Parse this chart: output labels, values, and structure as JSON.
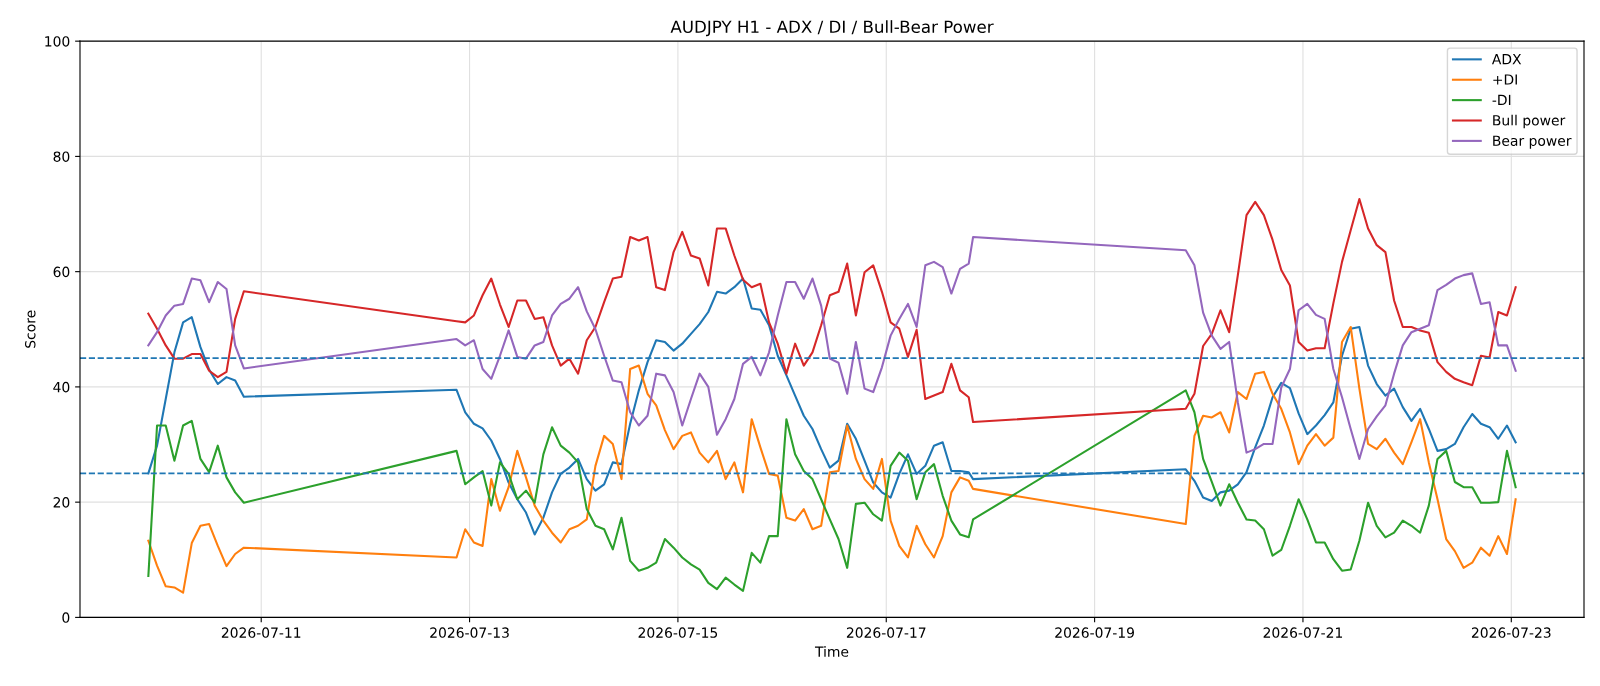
{
  "chart_data": {
    "type": "line",
    "title": "AUDJPY H1 - ADX / DI / Bull-Bear Power",
    "xlabel": "Time",
    "ylabel": "Score",
    "x": [
      "2026-07-09T22:00",
      "2026-07-10T00:00",
      "2026-07-10T02:00",
      "2026-07-10T04:00",
      "2026-07-10T06:00",
      "2026-07-10T08:00",
      "2026-07-10T10:00",
      "2026-07-10T12:00",
      "2026-07-10T14:00",
      "2026-07-10T16:00",
      "2026-07-10T18:00",
      "2026-07-10T20:00",
      "2026-07-12T21:00",
      "2026-07-12T23:00",
      "2026-07-13T01:00",
      "2026-07-13T03:00",
      "2026-07-13T05:00",
      "2026-07-13T07:00",
      "2026-07-13T09:00",
      "2026-07-13T11:00",
      "2026-07-13T13:00",
      "2026-07-13T15:00",
      "2026-07-13T17:00",
      "2026-07-13T19:00",
      "2026-07-13T21:00",
      "2026-07-13T23:00",
      "2026-07-14T01:00",
      "2026-07-14T03:00",
      "2026-07-14T05:00",
      "2026-07-14T07:00",
      "2026-07-14T09:00",
      "2026-07-14T11:00",
      "2026-07-14T13:00",
      "2026-07-14T15:00",
      "2026-07-14T17:00",
      "2026-07-14T19:00",
      "2026-07-14T21:00",
      "2026-07-14T23:00",
      "2026-07-15T01:00",
      "2026-07-15T03:00",
      "2026-07-15T05:00",
      "2026-07-15T07:00",
      "2026-07-15T09:00",
      "2026-07-15T11:00",
      "2026-07-15T13:00",
      "2026-07-15T15:00",
      "2026-07-15T17:00",
      "2026-07-15T19:00",
      "2026-07-15T21:00",
      "2026-07-15T23:00",
      "2026-07-16T01:00",
      "2026-07-16T03:00",
      "2026-07-16T05:00",
      "2026-07-16T07:00",
      "2026-07-16T09:00",
      "2026-07-16T11:00",
      "2026-07-16T13:00",
      "2026-07-16T15:00",
      "2026-07-16T17:00",
      "2026-07-16T19:00",
      "2026-07-16T21:00",
      "2026-07-16T23:00",
      "2026-07-17T01:00",
      "2026-07-17T03:00",
      "2026-07-17T05:00",
      "2026-07-17T07:00",
      "2026-07-17T09:00",
      "2026-07-17T11:00",
      "2026-07-17T13:00",
      "2026-07-17T15:00",
      "2026-07-17T17:00",
      "2026-07-17T19:00",
      "2026-07-17T20:00",
      "2026-07-19T21:00",
      "2026-07-19T23:00",
      "2026-07-20T01:00",
      "2026-07-20T03:00",
      "2026-07-20T05:00",
      "2026-07-20T07:00",
      "2026-07-20T09:00",
      "2026-07-20T11:00",
      "2026-07-20T13:00",
      "2026-07-20T15:00",
      "2026-07-20T17:00",
      "2026-07-20T19:00",
      "2026-07-20T21:00",
      "2026-07-20T23:00",
      "2026-07-21T01:00",
      "2026-07-21T03:00",
      "2026-07-21T05:00",
      "2026-07-21T07:00",
      "2026-07-21T09:00",
      "2026-07-21T11:00",
      "2026-07-21T13:00",
      "2026-07-21T15:00",
      "2026-07-21T17:00",
      "2026-07-21T19:00",
      "2026-07-21T21:00",
      "2026-07-21T23:00",
      "2026-07-22T01:00",
      "2026-07-22T03:00",
      "2026-07-22T05:00",
      "2026-07-22T07:00",
      "2026-07-22T09:00",
      "2026-07-22T11:00",
      "2026-07-22T13:00",
      "2026-07-22T15:00",
      "2026-07-22T17:00",
      "2026-07-22T19:00",
      "2026-07-22T21:00",
      "2026-07-22T23:00",
      "2026-07-23T01:00"
    ],
    "series": [
      {
        "name": "ADX",
        "color": "#1f77b4",
        "values": [
          25,
          29.8,
          37.9,
          46,
          51.2,
          52.1,
          46.9,
          43,
          40.5,
          41.7,
          41.1,
          38.3,
          39.5,
          35.6,
          33.6,
          32.8,
          30.7,
          27.5,
          23.4,
          20.5,
          18.2,
          14.4,
          17.3,
          21.7,
          24.9,
          26,
          27.5,
          24,
          22,
          23.1,
          26.9,
          26.6,
          33.6,
          39.4,
          44.3,
          48.1,
          47.8,
          46.3,
          47.5,
          49.2,
          50.9,
          53,
          56.5,
          56.2,
          57.3,
          58.8,
          53.6,
          53.4,
          50.7,
          45.4,
          42,
          38.5,
          35,
          32.7,
          29.2,
          26,
          27.2,
          33.6,
          31,
          27.2,
          23.4,
          21.7,
          20.8,
          24.9,
          28.3,
          24.9,
          26.3,
          29.8,
          30.4,
          25.4,
          25.4,
          25.2,
          24,
          25.7,
          23.7,
          20.8,
          20.2,
          21.7,
          22,
          23.1,
          25.2,
          29.5,
          33.3,
          38.2,
          40.7,
          39.8,
          35.4,
          31.8,
          33.3,
          35.1,
          37.3,
          45.4,
          50.1,
          50.4,
          43.7,
          40.5,
          38.5,
          39.7,
          36.5,
          34.1,
          36.2,
          32.7,
          28.9,
          29.2,
          30.1,
          33,
          35.3,
          33.6,
          33,
          31,
          33.3,
          30.4
        ]
      },
      {
        "name": "+DI",
        "color": "#ff7f0e",
        "values": [
          13.3,
          9,
          5.4,
          5.2,
          4.3,
          12.9,
          15.9,
          16.2,
          12.4,
          8.9,
          11,
          12.1,
          10.4,
          15.3,
          13,
          12.4,
          24,
          18.5,
          22.6,
          28.9,
          24.3,
          19.4,
          16.8,
          14.7,
          13,
          15.3,
          15.9,
          17,
          26.3,
          31.5,
          30.1,
          24,
          43.1,
          43.7,
          38.8,
          36.8,
          32.5,
          29.2,
          31.5,
          32.1,
          28.6,
          26.9,
          28.9,
          24,
          26.9,
          21.7,
          34.4,
          29.5,
          24.9,
          24.6,
          17.3,
          16.8,
          18.8,
          15.3,
          15.9,
          25.2,
          25.4,
          33.3,
          27.5,
          24,
          22.3,
          27.5,
          16.8,
          12.4,
          10.4,
          15.9,
          12.7,
          10.4,
          14.1,
          21.7,
          24.3,
          23.7,
          22.3,
          16.2,
          31.5,
          35,
          34.7,
          35.6,
          32.1,
          39.1,
          37.9,
          42.3,
          42.6,
          38.8,
          36.2,
          32.1,
          26.6,
          29.8,
          31.8,
          29.8,
          31.2,
          47.8,
          50.4,
          39.7,
          30.1,
          29.2,
          31,
          28.6,
          26.6,
          30.4,
          34.4,
          26.9,
          20.5,
          13.6,
          11.5,
          8.6,
          9.5,
          12.1,
          10.7,
          14.1,
          11,
          20.5
        ]
      },
      {
        "name": "-DI",
        "color": "#2ca02c",
        "values": [
          7.2,
          33.3,
          33.3,
          27.2,
          33.3,
          34.1,
          27.5,
          25.2,
          29.8,
          24.3,
          21.7,
          19.9,
          28.9,
          23.1,
          24.3,
          25.4,
          19.4,
          26.9,
          24.9,
          20.5,
          22,
          19.9,
          28.3,
          33,
          29.8,
          28.6,
          26.9,
          18.8,
          15.9,
          15.3,
          11.8,
          17.3,
          9.8,
          8.1,
          8.6,
          9.5,
          13.6,
          12.1,
          10.4,
          9.2,
          8.3,
          6,
          4.9,
          6.9,
          5.7,
          4.6,
          11.2,
          9.5,
          14.1,
          14.1,
          34.4,
          28.3,
          25.4,
          24,
          20.5,
          17,
          13.6,
          8.6,
          19.7,
          19.9,
          17.9,
          16.8,
          26.3,
          28.6,
          27.2,
          20.5,
          25.2,
          26.6,
          21.1,
          16.8,
          14.4,
          13.9,
          17,
          39.4,
          35.6,
          27.5,
          23.5,
          19.4,
          23.1,
          19.9,
          17,
          16.8,
          15.3,
          10.7,
          11.7,
          15.9,
          20.5,
          17,
          13,
          13,
          10.1,
          8.1,
          8.3,
          13.3,
          19.9,
          15.9,
          13.9,
          14.7,
          16.8,
          15.9,
          14.7,
          19.4,
          27.5,
          28.9,
          23.5,
          22.6,
          22.6,
          19.9,
          19.9,
          20,
          28.9,
          22.6
        ]
      },
      {
        "name": "Bull power",
        "color": "#d62728",
        "values": [
          52.7,
          50.1,
          47.2,
          44.9,
          44.9,
          45.7,
          45.7,
          42.8,
          41.7,
          42.6,
          51.8,
          56.6,
          51.4,
          51.2,
          52.4,
          55.9,
          58.8,
          54.3,
          50.4,
          55,
          55,
          51.8,
          52.1,
          47.2,
          43.7,
          44.9,
          42.3,
          48.1,
          50.4,
          54.7,
          58.8,
          59.1,
          66,
          65.4,
          66,
          57.3,
          56.8,
          63.4,
          66.9,
          62.8,
          62.3,
          57.6,
          67.5,
          67.5,
          62.8,
          58.6,
          57.3,
          57.9,
          51.2,
          47.5,
          42.3,
          47.5,
          43.7,
          46,
          50.7,
          55.9,
          56.5,
          61.4,
          52.4,
          59.9,
          61.1,
          56.5,
          51.2,
          50.1,
          45.2,
          49.9,
          37.9,
          38.5,
          39.1,
          44,
          39.4,
          38.2,
          33.9,
          36.2,
          38.8,
          47.1,
          49.2,
          53.3,
          49.5,
          59.4,
          69.8,
          72.1,
          69.8,
          65.5,
          60.3,
          57.6,
          47.8,
          46.3,
          46.7,
          46.7,
          54.5,
          61.7,
          67.2,
          72.6,
          67.5,
          64.6,
          63.4,
          55,
          50.4,
          50.4,
          49.8,
          49.4,
          44.3,
          42.6,
          41.4,
          40.8,
          40.3,
          45.4,
          45.1,
          53,
          52.4,
          57.3
        ]
      },
      {
        "name": "Bear power",
        "color": "#9467bd",
        "values": [
          47.2,
          49.5,
          52.4,
          54.1,
          54.4,
          58.8,
          58.5,
          54.7,
          58.2,
          57,
          47.2,
          43.2,
          48.3,
          47.2,
          48.1,
          43.1,
          41.4,
          45.4,
          49.8,
          45.2,
          44.9,
          47.2,
          47.8,
          52.4,
          54.4,
          55.3,
          57.3,
          53.1,
          50,
          45.4,
          41.1,
          40.8,
          35.6,
          33.3,
          35,
          42.3,
          42,
          39.1,
          33.3,
          37.9,
          42.3,
          40,
          31.7,
          34.4,
          37.9,
          44,
          45.2,
          42,
          46,
          52.4,
          58.2,
          58.2,
          55.3,
          58.8,
          54.1,
          44.9,
          44.2,
          38.8,
          47.8,
          39.7,
          39.1,
          43.4,
          48.9,
          51.8,
          54.4,
          50.4,
          61.1,
          61.7,
          60.8,
          56.2,
          60.5,
          61.4,
          66,
          63.7,
          61.1,
          52.9,
          48.9,
          46.6,
          47.8,
          37.3,
          28.6,
          29.2,
          30.1,
          30.1,
          39.9,
          43.1,
          53.3,
          54.4,
          52.5,
          51.8,
          43.1,
          38.2,
          32.7,
          27.5,
          32.7,
          34.9,
          36.8,
          42.3,
          47.2,
          49.5,
          50.1,
          50.7,
          56.8,
          57.7,
          58.8,
          59.4,
          59.7,
          54.4,
          54.7,
          47.2,
          47.2,
          42.8
        ]
      }
    ],
    "ref_lines": [
      {
        "axis": "y",
        "value": 45,
        "color": "#1f77b4",
        "line_style": "dashed"
      },
      {
        "axis": "y",
        "value": 25,
        "color": "#1f77b4",
        "line_style": "dashed"
      }
    ],
    "xlim": [
      "2026-07-09T06:15",
      "2026-07-23T16:45"
    ],
    "xticks": [
      "2026-07-11",
      "2026-07-13",
      "2026-07-15",
      "2026-07-17",
      "2026-07-19",
      "2026-07-21",
      "2026-07-23"
    ],
    "ylim": [
      0,
      100
    ],
    "yticks": [
      0,
      20,
      40,
      60,
      80,
      100
    ],
    "grid": true,
    "legend": "top right",
    "line_style": "solid",
    "marker": "none"
  }
}
